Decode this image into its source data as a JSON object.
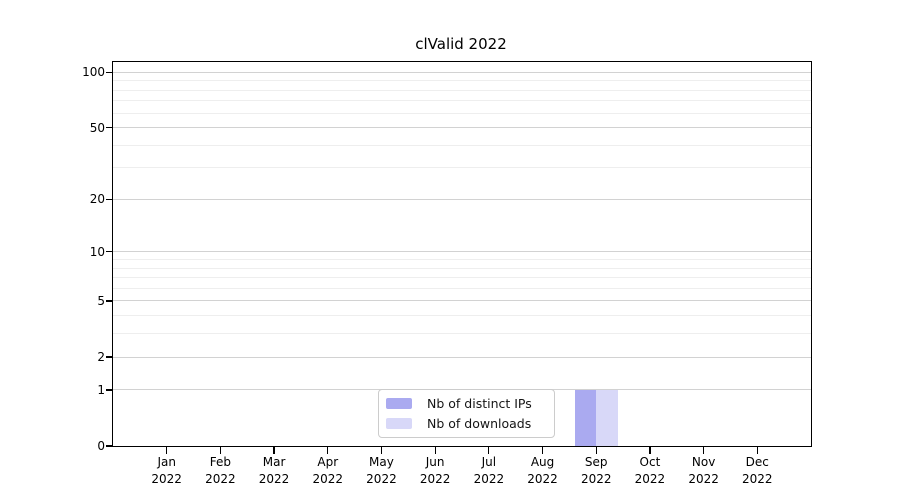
{
  "chart_data": {
    "type": "bar",
    "title": "clValid 2022",
    "categories": [
      "Jan",
      "Feb",
      "Mar",
      "Apr",
      "May",
      "Jun",
      "Jul",
      "Aug",
      "Sep",
      "Oct",
      "Nov",
      "Dec"
    ],
    "category_year": "2022",
    "series": [
      {
        "name": "Nb of distinct IPs",
        "color": "#aaaaf0",
        "values": [
          0,
          0,
          0,
          0,
          0,
          0,
          0,
          0,
          1,
          0,
          0,
          0
        ]
      },
      {
        "name": "Nb of downloads",
        "color": "#d8d8f8",
        "values": [
          0,
          0,
          0,
          0,
          0,
          0,
          0,
          0,
          1,
          0,
          0,
          0
        ]
      }
    ],
    "xlabel": "",
    "ylabel": "",
    "y_axis": {
      "scale": "log1p",
      "ticks": [
        0,
        1,
        2,
        5,
        10,
        20,
        50,
        100
      ],
      "minor_gridlines": [
        3,
        4,
        6,
        7,
        8,
        9,
        30,
        40,
        60,
        70,
        80,
        90
      ],
      "ylim": [
        0,
        113
      ]
    },
    "grid": true,
    "legend_position": "bottom-center"
  },
  "colors": {
    "major_grid": "#d2d2d2",
    "minor_grid": "#eeeeee",
    "spine": "#000000",
    "legend_border": "#cccccc",
    "background": "#ffffff"
  }
}
